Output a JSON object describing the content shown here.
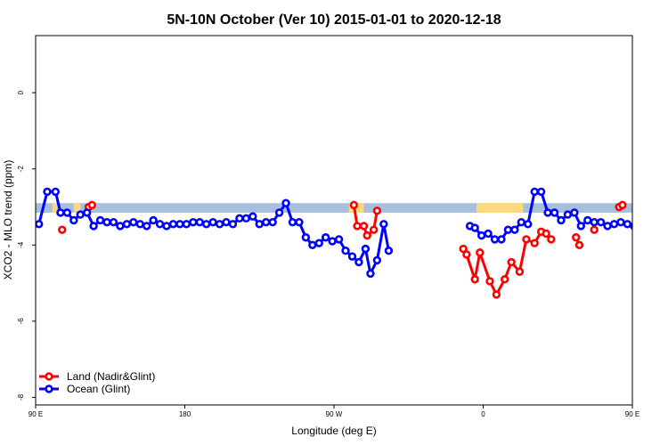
{
  "chart_data": {
    "type": "line",
    "title": "5N-10N October (Ver 10)   2015-01-01 to 2020-12-18",
    "xlabel": "Longitude (deg E)",
    "ylabel": "XCO2 - MLO trend (ppm)",
    "xlim": [
      90,
      450
    ],
    "ylim": [
      -8.2,
      1.5
    ],
    "x_ticks": [
      {
        "value": 90,
        "label": "90 E"
      },
      {
        "value": 180,
        "label": "180"
      },
      {
        "value": 270,
        "label": "90 W"
      },
      {
        "value": 360,
        "label": "0"
      },
      {
        "value": 450,
        "label": "90 E"
      },
      {
        "value": 540,
        "label": "180"
      }
    ],
    "y_ticks": [
      {
        "value": 0,
        "label": "0"
      },
      {
        "value": -2,
        "label": "-2"
      },
      {
        "value": -4,
        "label": "-4"
      },
      {
        "value": -6,
        "label": "-6"
      },
      {
        "value": -8,
        "label": "-8"
      }
    ],
    "band": {
      "y_low": -3.15,
      "y_high": -2.9,
      "ocean_color": "#a7bfdc",
      "land_color": "#fcd97a"
    },
    "band_land_segments": [
      [
        100,
        103
      ],
      [
        113,
        117
      ],
      [
        279,
        288
      ],
      [
        356,
        384
      ],
      [
        456,
        459
      ],
      [
        507,
        510
      ]
    ],
    "legend": {
      "position": "bottom-left",
      "entries": [
        {
          "name": "Land (Nadir&Glint)",
          "color": "#ff0000"
        },
        {
          "name": "Ocean (Glint)",
          "color": "#0000ff"
        }
      ]
    },
    "series": [
      {
        "name": "Land (Nadir&Glint)",
        "color": "#ff0000",
        "segments": [
          [
            [
              106,
              -3.6
            ]
          ],
          [
            [
              122,
              -3.0
            ],
            [
              124,
              -2.95
            ]
          ],
          [
            [
              282,
              -2.95
            ],
            [
              284,
              -3.5
            ],
            [
              288,
              -3.5
            ],
            [
              290,
              -3.75
            ],
            [
              294,
              -3.6
            ],
            [
              296,
              -3.1
            ]
          ],
          [
            [
              348,
              -4.1
            ],
            [
              350,
              -4.25
            ],
            [
              355,
              -4.9
            ],
            [
              358,
              -4.2
            ],
            [
              364,
              -4.95
            ],
            [
              368,
              -5.3
            ],
            [
              373,
              -4.9
            ],
            [
              377,
              -4.45
            ],
            [
              382,
              -4.7
            ],
            [
              386,
              -3.85
            ],
            [
              391,
              -3.95
            ],
            [
              395,
              -3.65
            ],
            [
              398,
              -3.7
            ],
            [
              401,
              -3.85
            ]
          ],
          [
            [
              416,
              -3.8
            ],
            [
              418,
              -4.0
            ]
          ],
          [
            [
              427,
              -3.6
            ]
          ],
          [
            [
              442,
              -3.0
            ],
            [
              444,
              -2.95
            ]
          ]
        ]
      },
      {
        "name": "Ocean (Glint)",
        "color": "#0000ff",
        "segments": [
          [
            [
              92,
              -3.45
            ],
            [
              97,
              -2.6
            ],
            [
              102,
              -2.6
            ],
            [
              105,
              -3.15
            ],
            [
              109,
              -3.15
            ],
            [
              113,
              -3.35
            ],
            [
              117,
              -3.2
            ],
            [
              121,
              -3.15
            ],
            [
              125,
              -3.5
            ],
            [
              129,
              -3.35
            ],
            [
              133,
              -3.4
            ],
            [
              137,
              -3.4
            ],
            [
              141,
              -3.5
            ],
            [
              145,
              -3.45
            ],
            [
              149,
              -3.4
            ],
            [
              153,
              -3.45
            ],
            [
              157,
              -3.5
            ],
            [
              161,
              -3.35
            ],
            [
              165,
              -3.45
            ],
            [
              169,
              -3.5
            ],
            [
              173,
              -3.45
            ],
            [
              177,
              -3.45
            ],
            [
              181,
              -3.45
            ],
            [
              185,
              -3.4
            ],
            [
              189,
              -3.4
            ],
            [
              193,
              -3.45
            ],
            [
              197,
              -3.4
            ],
            [
              201,
              -3.45
            ],
            [
              205,
              -3.4
            ],
            [
              209,
              -3.45
            ],
            [
              213,
              -3.3
            ],
            [
              217,
              -3.3
            ],
            [
              221,
              -3.25
            ],
            [
              225,
              -3.45
            ],
            [
              229,
              -3.4
            ],
            [
              233,
              -3.4
            ],
            [
              237,
              -3.15
            ],
            [
              241,
              -2.9
            ],
            [
              245,
              -3.4
            ],
            [
              249,
              -3.4
            ],
            [
              253,
              -3.8
            ],
            [
              257,
              -4.0
            ],
            [
              261,
              -3.95
            ],
            [
              265,
              -3.8
            ],
            [
              269,
              -3.9
            ],
            [
              273,
              -3.85
            ],
            [
              277,
              -4.15
            ],
            [
              281,
              -4.3
            ],
            [
              285,
              -4.45
            ],
            [
              289,
              -4.1
            ],
            [
              292,
              -4.75
            ],
            [
              296,
              -4.4
            ],
            [
              300,
              -3.45
            ],
            [
              303,
              -4.15
            ]
          ],
          [
            [
              352,
              -3.5
            ],
            [
              355,
              -3.55
            ],
            [
              359,
              -3.75
            ],
            [
              363,
              -3.7
            ],
            [
              367,
              -3.85
            ],
            [
              371,
              -3.85
            ],
            [
              375,
              -3.6
            ],
            [
              379,
              -3.6
            ],
            [
              383,
              -3.4
            ],
            [
              387,
              -3.45
            ],
            [
              391,
              -2.6
            ],
            [
              395,
              -2.6
            ],
            [
              399,
              -3.15
            ],
            [
              403,
              -3.15
            ],
            [
              407,
              -3.35
            ],
            [
              411,
              -3.2
            ],
            [
              415,
              -3.15
            ],
            [
              419,
              -3.5
            ],
            [
              423,
              -3.35
            ],
            [
              427,
              -3.4
            ],
            [
              431,
              -3.4
            ],
            [
              435,
              -3.5
            ],
            [
              439,
              -3.45
            ],
            [
              443,
              -3.4
            ],
            [
              447,
              -3.45
            ],
            [
              451,
              -3.5
            ],
            [
              455,
              -3.3
            ]
          ]
        ]
      }
    ]
  }
}
